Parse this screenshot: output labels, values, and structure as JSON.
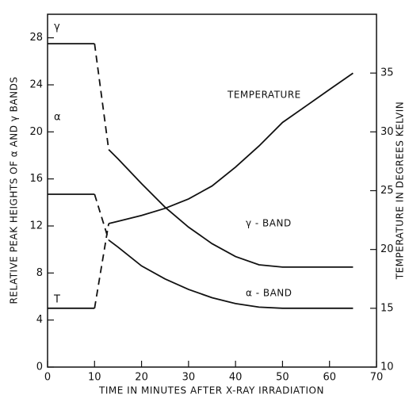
{
  "chart_data": {
    "type": "line",
    "xlabel": "TIME IN MINUTES AFTER X-RAY IRRADIATION",
    "ylabel": "RELATIVE PEAK HEIGHTS OF α AND γ BANDS",
    "y2label": "TEMPERATURE IN DEGREES KELVIN",
    "x": [
      0,
      10,
      13,
      15,
      20,
      25,
      30,
      35,
      40,
      45,
      50,
      55,
      60,
      65
    ],
    "series": [
      {
        "name": "γ",
        "color": "#111111",
        "dashed_segments": [
          1
        ],
        "values": [
          27.5,
          27.5,
          18.5,
          17.7,
          15.6,
          13.6,
          11.9,
          10.5,
          9.4,
          8.7,
          8.5,
          8.5,
          8.5,
          8.5
        ]
      },
      {
        "name": "α",
        "color": "#111111",
        "dashed_segments": [
          1
        ],
        "values": [
          14.7,
          14.7,
          10.8,
          10.2,
          8.6,
          7.5,
          6.6,
          5.9,
          5.4,
          5.1,
          5.0,
          5.0,
          5.0,
          5.0
        ]
      },
      {
        "name": "T",
        "color": "#111111",
        "dashed_segments": [
          1
        ],
        "axis": "y2",
        "values": [
          15,
          15,
          22.2,
          22.4,
          22.9,
          23.5,
          24.3,
          25.4,
          27.0,
          28.8,
          30.8,
          32.2,
          33.6,
          35.0
        ]
      }
    ],
    "annotations": [
      "TEMPERATURE",
      "γ - BAND",
      "α - BAND"
    ],
    "xlim": [
      0,
      70
    ],
    "xticks": [
      0,
      10,
      20,
      30,
      40,
      50,
      60,
      70
    ],
    "ylim": [
      0,
      30
    ],
    "yticks": [
      0,
      4,
      8,
      12,
      16,
      20,
      24,
      28
    ],
    "y2lim": [
      10,
      40
    ],
    "y2ticks": [
      10,
      15,
      20,
      25,
      30,
      35
    ],
    "grid": false
  }
}
